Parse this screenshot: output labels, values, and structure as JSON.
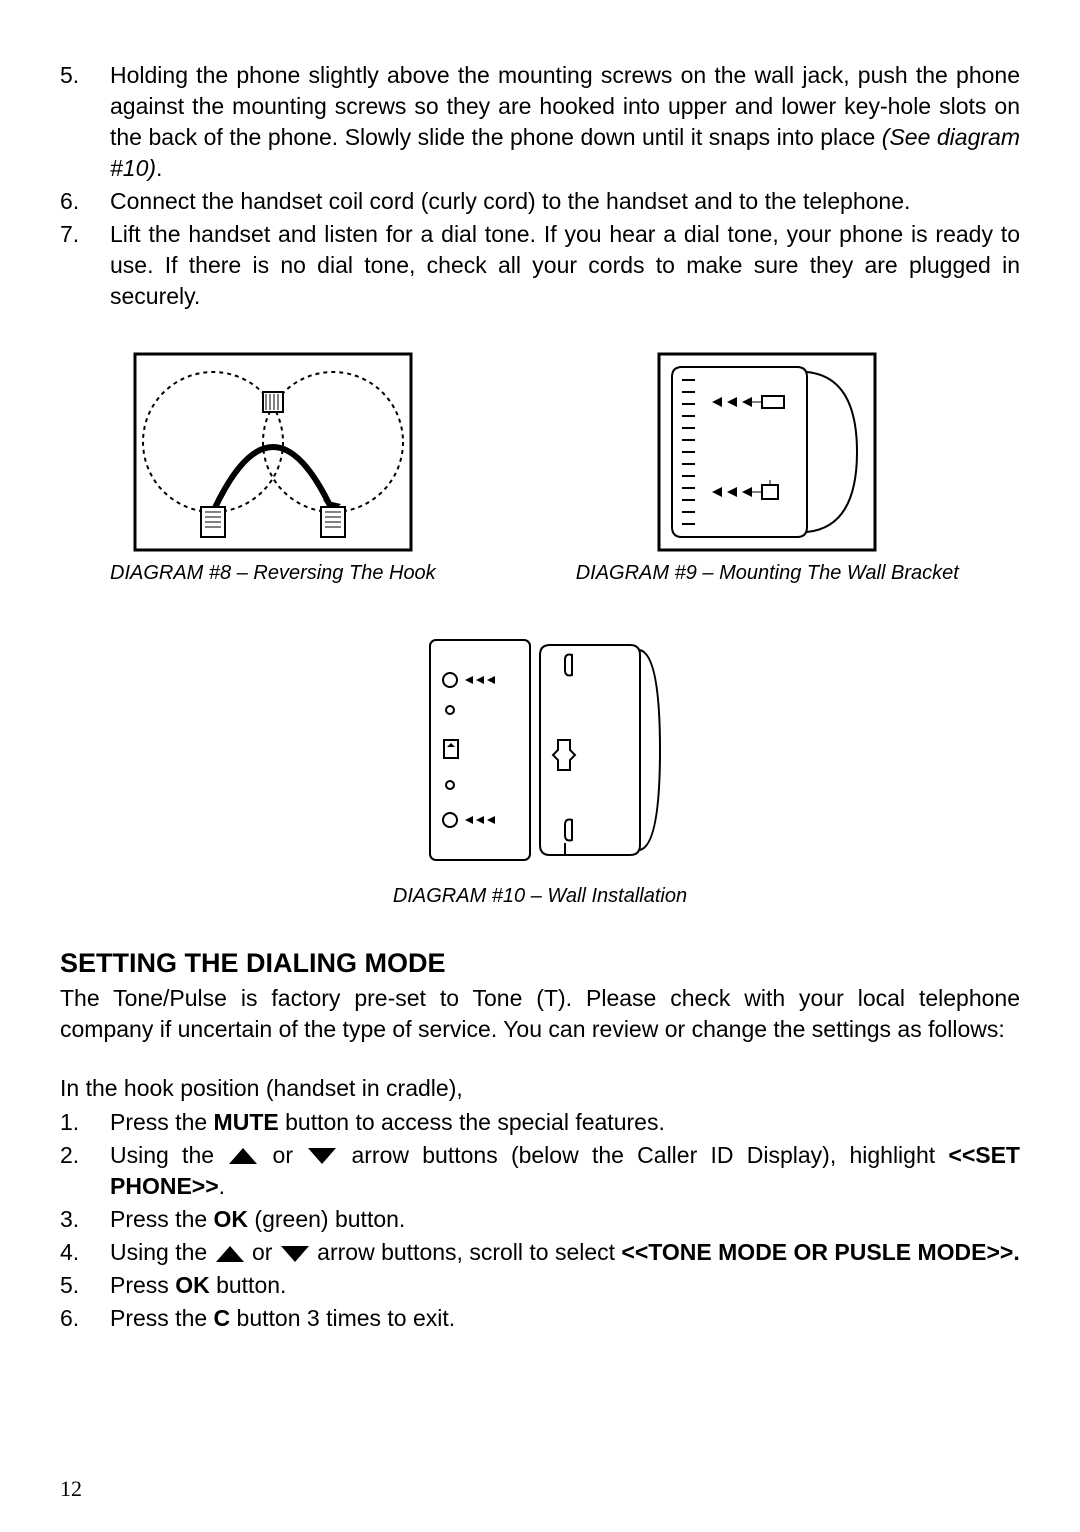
{
  "list1": {
    "items": [
      {
        "num": "5.",
        "text_parts": [
          "Holding the phone slightly above the mounting screws on the wall jack, push the phone against the mounting screws so they are hooked into upper and lower key-hole slots on the back of the phone. Slowly slide the phone down until it snaps into place ",
          {
            "italic": "(See diagram #10)"
          },
          "."
        ]
      },
      {
        "num": "6.",
        "text_parts": [
          "Connect the handset coil cord (curly cord) to the handset and to the telephone."
        ]
      },
      {
        "num": "7.",
        "text_parts": [
          "Lift the handset and listen for a dial tone. If you hear a dial tone, your phone is ready to use. If there is no dial tone, check all your cords to make sure they are plugged in securely."
        ]
      }
    ]
  },
  "diagrams": {
    "d8": {
      "caption": "DIAGRAM #8 – Reversing The Hook"
    },
    "d9": {
      "caption": "DIAGRAM #9 – Mounting The Wall Bracket"
    },
    "d10": {
      "caption": "DIAGRAM #10 – Wall Installation"
    }
  },
  "heading": "SETTING THE DIALING MODE",
  "intro": "The Tone/Pulse is factory pre-set to Tone (T). Please check with your local telephone company if uncertain of the type of service. You can review or change the settings as follows:",
  "hook_line": "In the hook position (handset in cradle),",
  "list2": {
    "items": [
      {
        "num": "1.",
        "parts": [
          "Press the ",
          {
            "bold": "MUTE"
          },
          " button to access the special features."
        ]
      },
      {
        "num": "2.",
        "parts": [
          "Using the ",
          {
            "arrow": "up"
          },
          " or ",
          {
            "arrow": "down"
          },
          " arrow buttons (below the Caller ID Display), highlight ",
          {
            "bold": "<<SET PHONE>>"
          },
          "."
        ]
      },
      {
        "num": "3.",
        "parts": [
          "Press the ",
          {
            "bold": "OK"
          },
          " (green) button."
        ]
      },
      {
        "num": "4.",
        "parts": [
          "Using the ",
          {
            "arrow": "up"
          },
          " or ",
          {
            "arrow": "down"
          },
          "  arrow buttons, scroll to select  ",
          {
            "bold": "<<TONE MODE OR PUSLE MODE>>."
          }
        ]
      },
      {
        "num": "5.",
        "parts": [
          "Press ",
          {
            "bold": "OK"
          },
          " button."
        ]
      },
      {
        "num": "6.",
        "parts": [
          "Press the ",
          {
            "bold": "C"
          },
          " button 3 times to exit."
        ]
      }
    ]
  },
  "page_number": "12",
  "colors": {
    "text": "#000000",
    "bg": "#ffffff",
    "stroke": "#000000"
  }
}
